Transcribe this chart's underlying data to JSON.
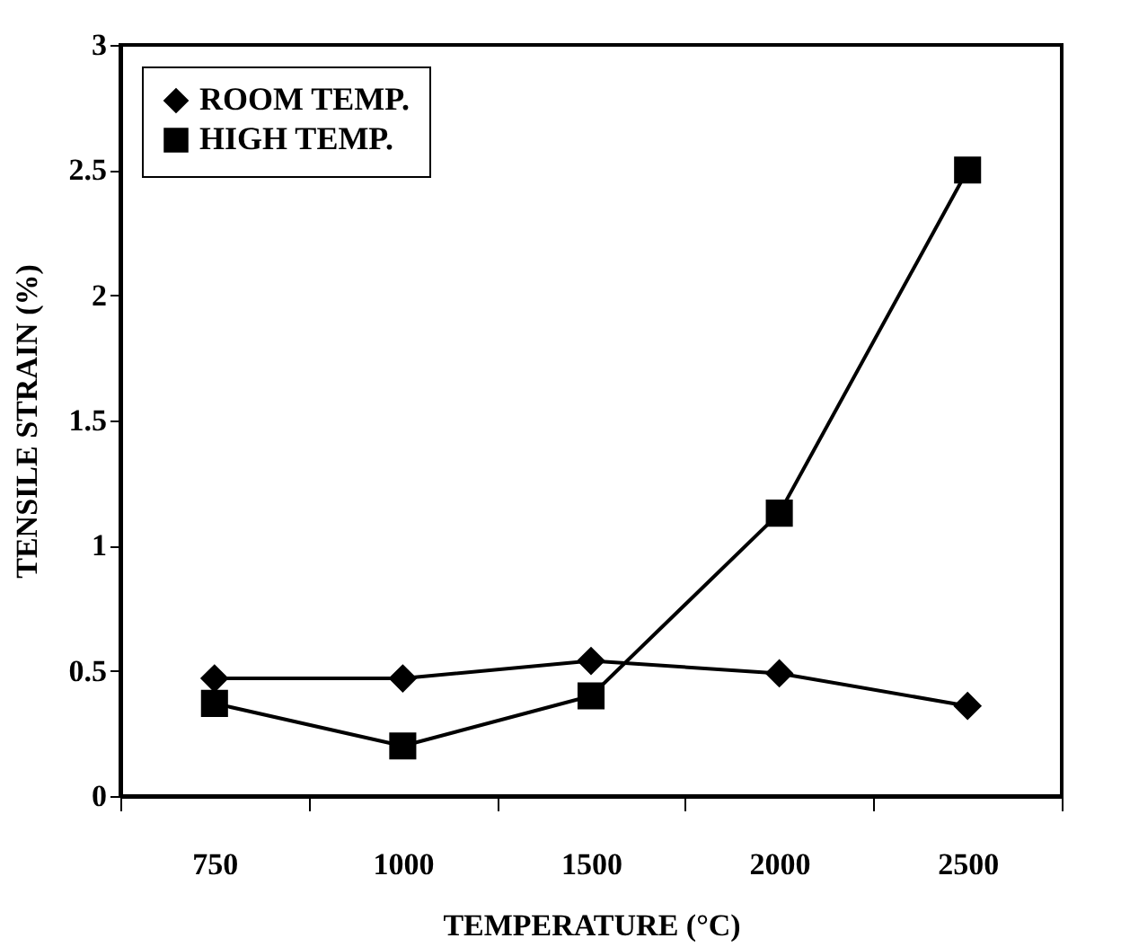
{
  "chart_data": {
    "type": "line",
    "xlabel": "TEMPERATURE (°C)",
    "ylabel": "TENSILE STRAIN (%)",
    "categories": [
      "750",
      "1000",
      "1500",
      "2000",
      "2500"
    ],
    "series": [
      {
        "name": "ROOM TEMP.",
        "color": "#000000",
        "marker": "diamond",
        "values": [
          0.47,
          0.47,
          0.54,
          0.49,
          0.36
        ]
      },
      {
        "name": "HIGH TEMP.",
        "color": "#000000",
        "marker": "square",
        "values": [
          0.37,
          0.2,
          0.4,
          1.13,
          2.5
        ]
      }
    ],
    "ylim": [
      0,
      3
    ],
    "yticks": [
      0,
      0.5,
      1,
      1.5,
      2,
      2.5,
      3
    ],
    "grid": false,
    "legend": "top left",
    "line_style": "solid"
  }
}
